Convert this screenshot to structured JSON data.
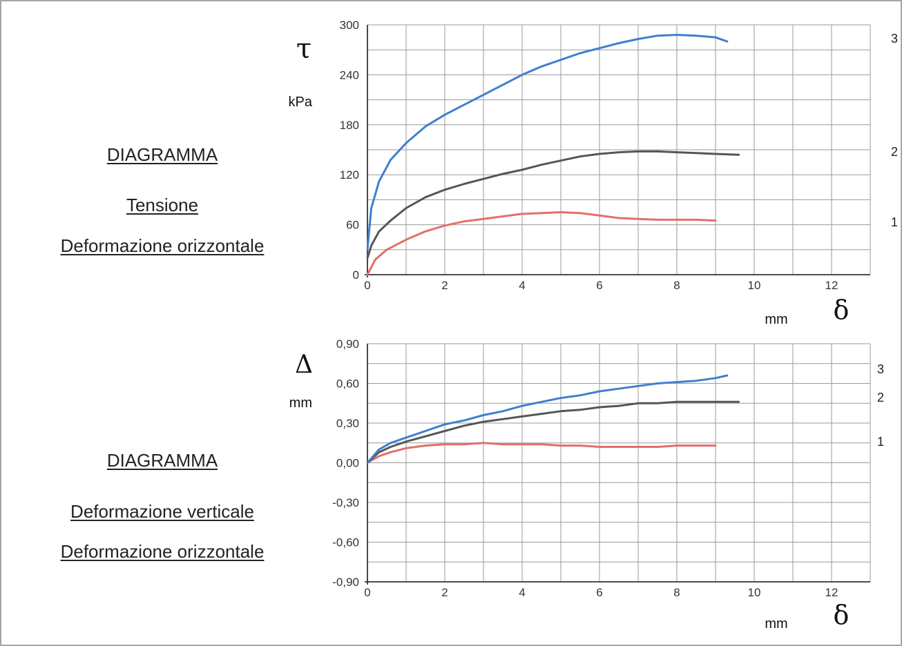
{
  "left_titles": {
    "chart1": {
      "line1": "DIAGRAMMA",
      "line2": "Tensione",
      "line3": "Deformazione orizzontale"
    },
    "chart2": {
      "line1": "DIAGRAMMA",
      "line2": "Deformazione verticale",
      "line3": "Deformazione orizzontale"
    }
  },
  "chart_data": [
    {
      "type": "line",
      "title": "",
      "y_symbol": "τ",
      "ylabel": "kPa",
      "x_symbol": "δ",
      "xlabel": "mm",
      "xlim": [
        0,
        13
      ],
      "ylim": [
        0,
        300
      ],
      "x_ticks": [
        0,
        2,
        4,
        6,
        8,
        10,
        12
      ],
      "x_tick_labels": [
        "0",
        "2",
        "4",
        "6",
        "8",
        "10",
        "12"
      ],
      "y_ticks": [
        0,
        60,
        120,
        180,
        240,
        300
      ],
      "y_tick_labels": [
        "0",
        "60",
        "120",
        "180",
        "240",
        "300"
      ],
      "grid": true,
      "series": [
        {
          "name": "1",
          "color": "#e0706a",
          "x": [
            0,
            0.2,
            0.5,
            1,
            1.5,
            2,
            2.5,
            3,
            3.5,
            4,
            4.5,
            5,
            5.5,
            6,
            6.5,
            7,
            7.5,
            8,
            8.5,
            9
          ],
          "y": [
            0,
            18,
            30,
            42,
            52,
            59,
            64,
            67,
            70,
            73,
            74,
            75,
            74,
            71,
            68,
            67,
            66,
            66,
            66,
            65
          ]
        },
        {
          "name": "2",
          "color": "#555555",
          "x": [
            0,
            0.1,
            0.3,
            0.6,
            1,
            1.5,
            2,
            2.5,
            3,
            3.5,
            4,
            4.5,
            5,
            5.5,
            6,
            6.5,
            7,
            7.5,
            8,
            8.5,
            9,
            9.6
          ],
          "y": [
            20,
            35,
            52,
            65,
            80,
            93,
            102,
            109,
            115,
            121,
            126,
            132,
            137,
            142,
            145,
            147,
            148,
            148,
            147,
            146,
            145,
            144
          ]
        },
        {
          "name": "3",
          "color": "#3f7fcf",
          "x": [
            0,
            0.1,
            0.3,
            0.6,
            1,
            1.5,
            2,
            2.5,
            3,
            3.5,
            4,
            4.5,
            5,
            5.5,
            6,
            6.5,
            7,
            7.5,
            8,
            8.5,
            9,
            9.3
          ],
          "y": [
            30,
            80,
            112,
            138,
            158,
            178,
            192,
            204,
            216,
            228,
            240,
            250,
            258,
            266,
            272,
            278,
            283,
            287,
            288,
            287,
            285,
            280
          ]
        }
      ]
    },
    {
      "type": "line",
      "title": "",
      "y_symbol": "Δ",
      "ylabel": "mm",
      "x_symbol": "δ",
      "xlabel": "mm",
      "xlim": [
        0,
        13
      ],
      "ylim": [
        -0.9,
        0.9
      ],
      "x_ticks": [
        0,
        2,
        4,
        6,
        8,
        10,
        12
      ],
      "x_tick_labels": [
        "0",
        "2",
        "4",
        "6",
        "8",
        "10",
        "12"
      ],
      "y_ticks": [
        -0.9,
        -0.6,
        -0.3,
        0,
        0.3,
        0.6,
        0.9
      ],
      "y_tick_labels": [
        "-0,90",
        "-0,60",
        "-0,30",
        "0,00",
        "0,30",
        "0,60",
        "0,90"
      ],
      "grid": true,
      "series": [
        {
          "name": "1",
          "color": "#e0706a",
          "x": [
            0,
            0.3,
            0.6,
            1,
            1.5,
            2,
            2.5,
            3,
            3.5,
            4,
            4.5,
            5,
            5.5,
            6,
            6.5,
            7,
            7.5,
            8,
            8.5,
            9
          ],
          "y": [
            0,
            0.05,
            0.08,
            0.11,
            0.13,
            0.14,
            0.14,
            0.15,
            0.14,
            0.14,
            0.14,
            0.13,
            0.13,
            0.12,
            0.12,
            0.12,
            0.12,
            0.13,
            0.13,
            0.13
          ]
        },
        {
          "name": "2",
          "color": "#555555",
          "x": [
            0,
            0.3,
            0.6,
            1,
            1.5,
            2,
            2.5,
            3,
            3.5,
            4,
            4.5,
            5,
            5.5,
            6,
            6.5,
            7,
            7.5,
            8,
            8.5,
            9,
            9.6
          ],
          "y": [
            0,
            0.08,
            0.12,
            0.16,
            0.2,
            0.24,
            0.28,
            0.31,
            0.33,
            0.35,
            0.37,
            0.39,
            0.4,
            0.42,
            0.43,
            0.45,
            0.45,
            0.46,
            0.46,
            0.46,
            0.46
          ]
        },
        {
          "name": "3",
          "color": "#3f7fcf",
          "x": [
            0,
            0.3,
            0.6,
            1,
            1.5,
            2,
            2.5,
            3,
            3.5,
            4,
            4.5,
            5,
            5.5,
            6,
            6.5,
            7,
            7.5,
            8,
            8.5,
            9,
            9.3
          ],
          "y": [
            0,
            0.1,
            0.15,
            0.19,
            0.24,
            0.29,
            0.32,
            0.36,
            0.39,
            0.43,
            0.46,
            0.49,
            0.51,
            0.54,
            0.56,
            0.58,
            0.6,
            0.61,
            0.62,
            0.64,
            0.66
          ]
        }
      ]
    }
  ]
}
